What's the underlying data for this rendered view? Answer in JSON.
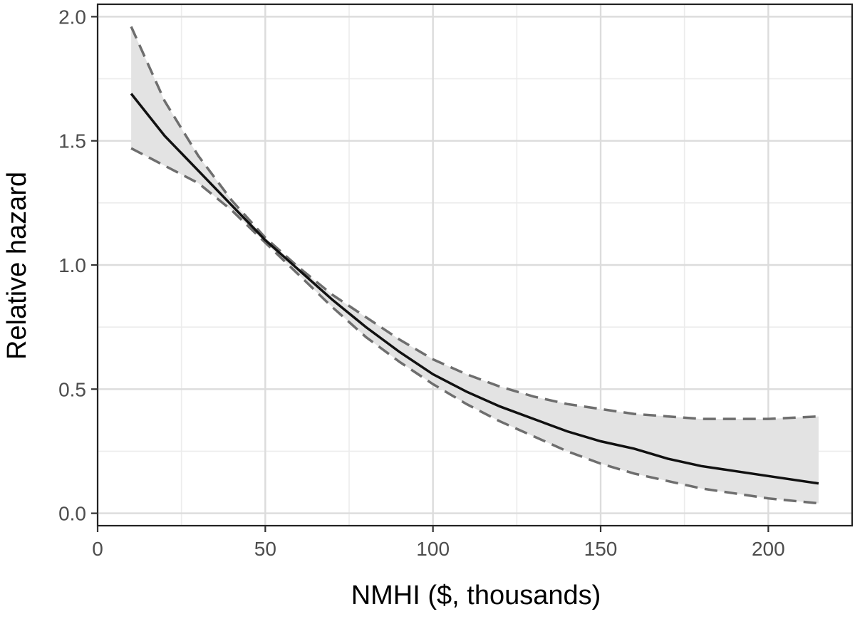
{
  "chart_data": {
    "type": "line",
    "xlabel": "NMHI ($, thousands)",
    "ylabel": "Relative hazard",
    "xlim": [
      0,
      225
    ],
    "ylim": [
      -0.05,
      2.05
    ],
    "x_major_ticks": [
      0,
      50,
      100,
      150,
      200
    ],
    "x_tick_labels": [
      "0",
      "50",
      "100",
      "150",
      "200"
    ],
    "x_minor_ticks": [
      25,
      75,
      125,
      175
    ],
    "y_major_ticks": [
      0.0,
      0.5,
      1.0,
      1.5,
      2.0
    ],
    "y_tick_labels": [
      "0.0",
      "0.5",
      "1.0",
      "1.5",
      "2.0"
    ],
    "y_minor_ticks": [
      0.25,
      0.75,
      1.25,
      1.75
    ],
    "grid": true,
    "legend": "none",
    "colors": {
      "fit": "#111111",
      "ci_line": "#6e6e6e",
      "ci_band": "#e3e3e3",
      "grid_major": "#dcdcdc",
      "grid_minor": "#ececec"
    },
    "series": [
      {
        "role": "estimate",
        "style": "solid",
        "x": [
          10,
          20,
          30,
          40,
          50,
          60,
          70,
          80,
          90,
          100,
          110,
          120,
          130,
          140,
          150,
          160,
          170,
          180,
          190,
          200,
          215
        ],
        "y": [
          1.69,
          1.52,
          1.38,
          1.24,
          1.1,
          0.98,
          0.86,
          0.75,
          0.65,
          0.56,
          0.49,
          0.43,
          0.38,
          0.33,
          0.29,
          0.26,
          0.22,
          0.19,
          0.17,
          0.15,
          0.12
        ]
      },
      {
        "role": "upper",
        "style": "dashed",
        "x": [
          10,
          20,
          30,
          40,
          50,
          60,
          70,
          80,
          90,
          100,
          110,
          120,
          130,
          140,
          150,
          160,
          170,
          180,
          190,
          200,
          215
        ],
        "y": [
          1.96,
          1.66,
          1.44,
          1.26,
          1.11,
          0.99,
          0.88,
          0.79,
          0.7,
          0.62,
          0.56,
          0.51,
          0.47,
          0.44,
          0.42,
          0.4,
          0.39,
          0.38,
          0.38,
          0.38,
          0.39
        ]
      },
      {
        "role": "lower",
        "style": "dashed",
        "x": [
          10,
          20,
          30,
          40,
          50,
          60,
          70,
          80,
          90,
          100,
          110,
          120,
          130,
          140,
          150,
          160,
          170,
          180,
          190,
          200,
          215
        ],
        "y": [
          1.47,
          1.4,
          1.33,
          1.22,
          1.09,
          0.96,
          0.83,
          0.71,
          0.61,
          0.52,
          0.44,
          0.37,
          0.31,
          0.25,
          0.2,
          0.16,
          0.13,
          0.1,
          0.08,
          0.06,
          0.04
        ]
      }
    ]
  }
}
